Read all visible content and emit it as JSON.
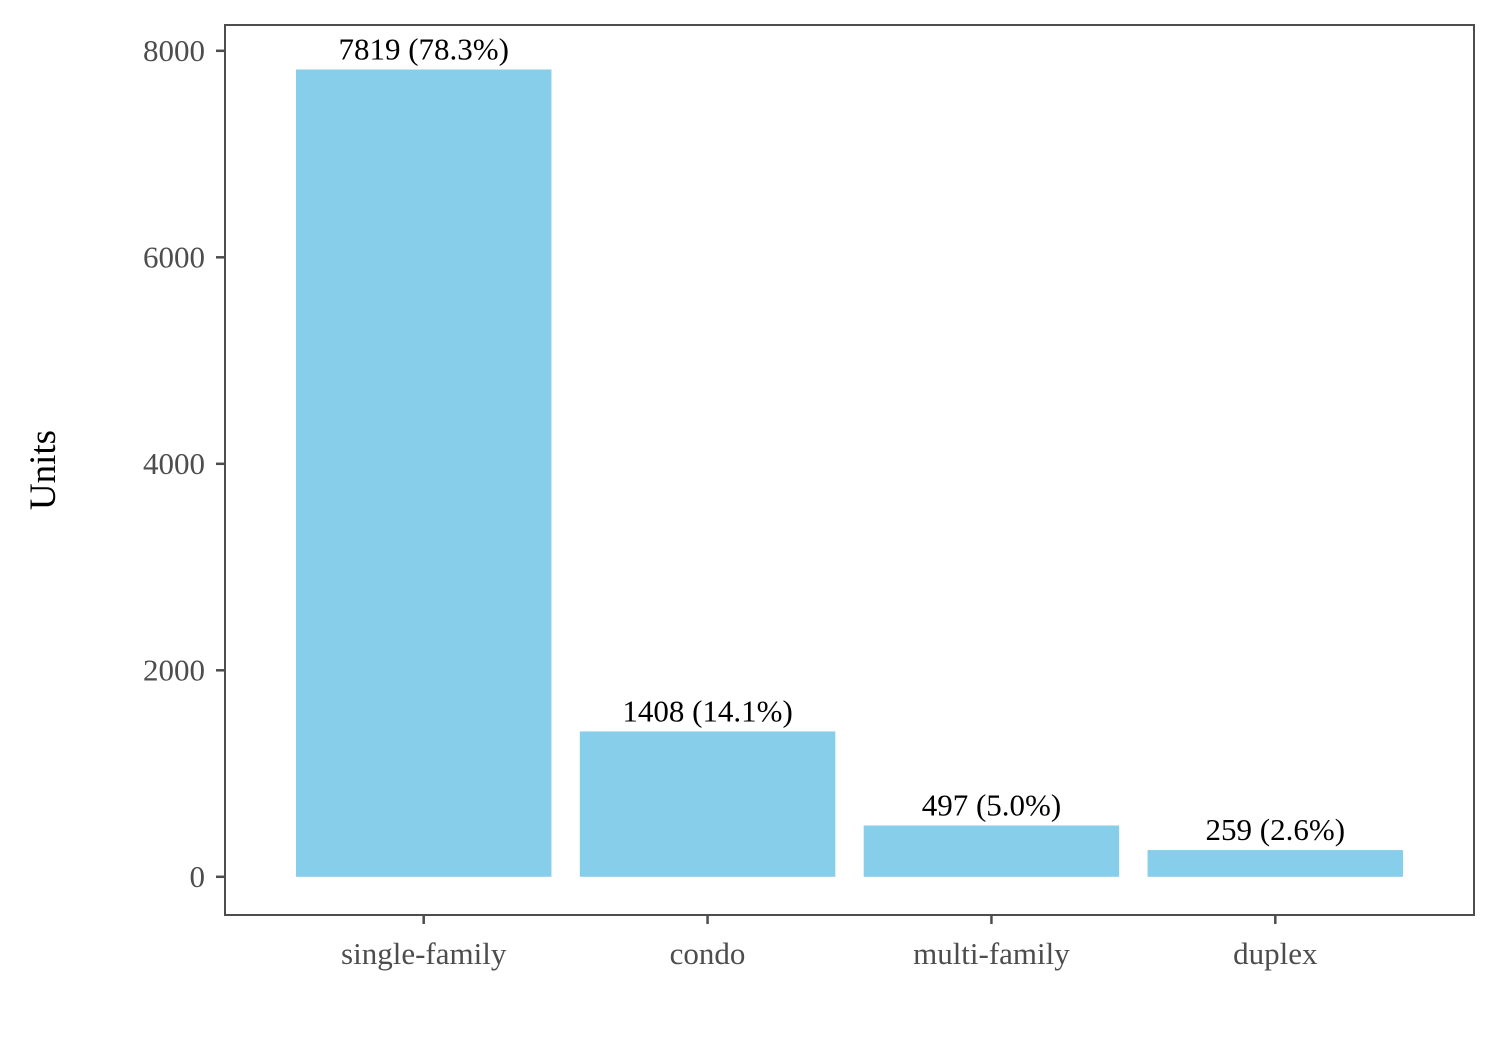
{
  "chart_data": {
    "type": "bar",
    "title": "",
    "xlabel": "",
    "ylabel": "Units",
    "categories": [
      "single-family",
      "condo",
      "multi-family",
      "duplex"
    ],
    "values": [
      7819,
      1408,
      497,
      259
    ],
    "data_labels": [
      "7819 (78.3%)",
      "1408 (14.1%)",
      "497 (5.0%)",
      "259 (2.6%)"
    ],
    "yticks": [
      0,
      2000,
      4000,
      6000,
      8000
    ],
    "ylim": [
      -370,
      8250
    ],
    "grid": false,
    "legend": "none",
    "colors": {
      "bar": "#87CEEB",
      "frame": "#4d4d4d",
      "tick_text": "#4d4d4d"
    }
  }
}
